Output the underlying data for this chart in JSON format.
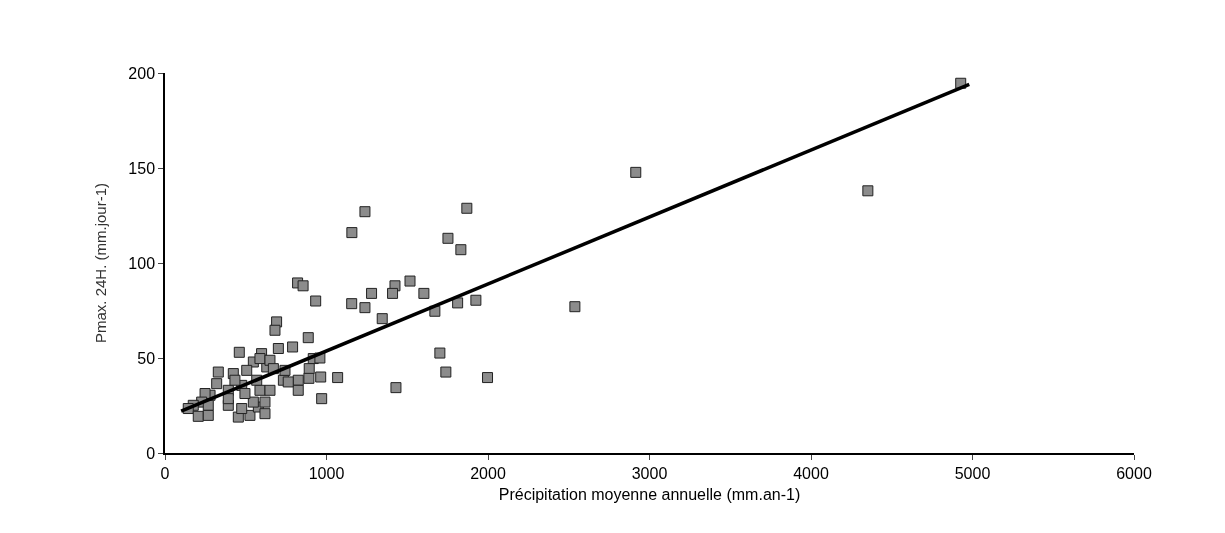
{
  "chart_data": {
    "type": "scatter",
    "xlabel": "Précipitation moyenne annuelle (mm.an-1)",
    "ylabel": "Pmax. 24H. (mm.jour-1)",
    "xlim": [
      0,
      6000
    ],
    "xticks": [
      0,
      1000,
      2000,
      3000,
      4000,
      5000,
      6000
    ],
    "ylim": [
      0,
      200
    ],
    "yticks": [
      0,
      50,
      100,
      150,
      200
    ],
    "grid": false,
    "series": [
      {
        "color": "#8c8c8c",
        "marker": "square",
        "x": [
          4927,
          4352,
          2915,
          2538,
          821,
          855,
          1424,
          1517,
          933,
          1279,
          1409,
          1603,
          1156,
          1238,
          1345,
          1671,
          1812,
          1925,
          1157,
          1238,
          1869,
          1752,
          1832,
          691,
          681,
          887,
          460,
          702,
          790,
          598,
          918,
          959,
          1702,
          1739,
          1997,
          1430,
          1069,
          964,
          970,
          893,
          891,
          825,
          733,
          743,
          630,
          547,
          330,
          423,
          506,
          588,
          650,
          671,
          320,
          392,
          475,
          588,
          650,
          279,
          248,
          227,
          268,
          175,
          144,
          206,
          268,
          392,
          454,
          526,
          392,
          475,
          578,
          619,
          619,
          547,
          495,
          433,
          568,
          825,
          763
        ],
        "values": [
          194.6,
          138,
          147.7,
          77,
          89.5,
          88,
          88,
          90.5,
          80,
          84,
          84,
          84,
          78.6,
          76.5,
          70.7,
          74.6,
          79,
          80.4,
          116,
          127,
          128.8,
          113,
          107,
          69,
          64.6,
          60.7,
          53,
          55,
          55.8,
          52.3,
          49.7,
          50,
          52.6,
          42.6,
          39.7,
          34.4,
          39.7,
          40,
          28.6,
          44.4,
          39.3,
          38.3,
          38.3,
          43.5,
          45.3,
          47.9,
          42.6,
          41.8,
          43.5,
          49.7,
          48.8,
          44.4,
          36.5,
          33,
          35.6,
          33,
          33,
          30.4,
          31.3,
          26.8,
          25.1,
          25.1,
          23.4,
          19.3,
          19.8,
          25.1,
          18.9,
          19.8,
          28.6,
          23.4,
          24.2,
          20.7,
          26.8,
          26.8,
          31.3,
          38.3,
          38.3,
          33,
          37.4
        ]
      },
      {
        "type": "line",
        "color": "#000000",
        "line_style": "solid",
        "marker": "none",
        "x": [
          100,
          4980
        ],
        "values": [
          22,
          194
        ]
      }
    ]
  }
}
